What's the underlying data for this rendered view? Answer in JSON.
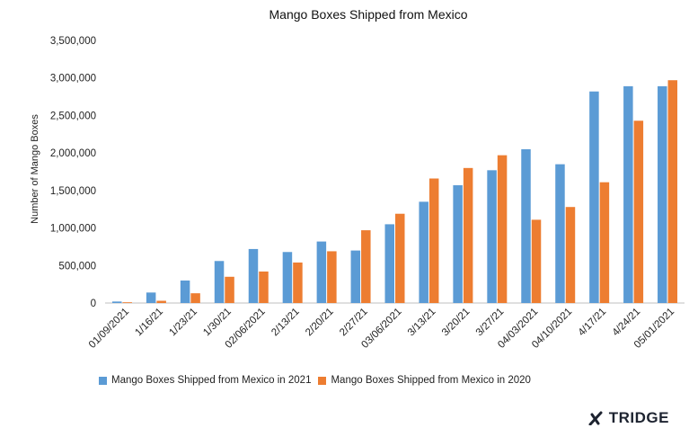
{
  "chart_data": {
    "type": "bar",
    "title": "Mango Boxes Shipped from Mexico",
    "ylabel": "Number of Mango Boxes",
    "xlabel": "",
    "ylim": [
      0,
      3500000
    ],
    "yticks": [
      "0",
      "500,000",
      "1,000,000",
      "1,500,000",
      "2,000,000",
      "2,500,000",
      "3,000,000",
      "3,500,000"
    ],
    "grid": false,
    "legend_position": "bottom",
    "categories": [
      "01/09/2021",
      "1/16/21",
      "1/23/21",
      "1/30/21",
      "02/06/2021",
      "2/13/21",
      "2/20/21",
      "2/27/21",
      "03/06/2021",
      "3/13/21",
      "3/20/21",
      "3/27/21",
      "04/03/2021",
      "04/10/2021",
      "4/17/21",
      "4/24/21",
      "05/01/2021"
    ],
    "series": [
      {
        "name": "Mango Boxes Shipped from Mexico in 2021",
        "color": "#5b9bd5",
        "values": [
          20000,
          140000,
          300000,
          560000,
          720000,
          680000,
          820000,
          700000,
          1050000,
          1350000,
          1570000,
          1770000,
          2050000,
          1850000,
          2820000,
          2890000,
          2890000
        ]
      },
      {
        "name": "Mango Boxes Shipped from Mexico in 2020",
        "color": "#ed7d31",
        "values": [
          10000,
          30000,
          130000,
          350000,
          420000,
          540000,
          690000,
          970000,
          1190000,
          1660000,
          1800000,
          1970000,
          1110000,
          1280000,
          1610000,
          2430000,
          2970000
        ]
      }
    ]
  },
  "brand": {
    "name": "TRIDGE",
    "icon": "tridge-logo-icon"
  }
}
